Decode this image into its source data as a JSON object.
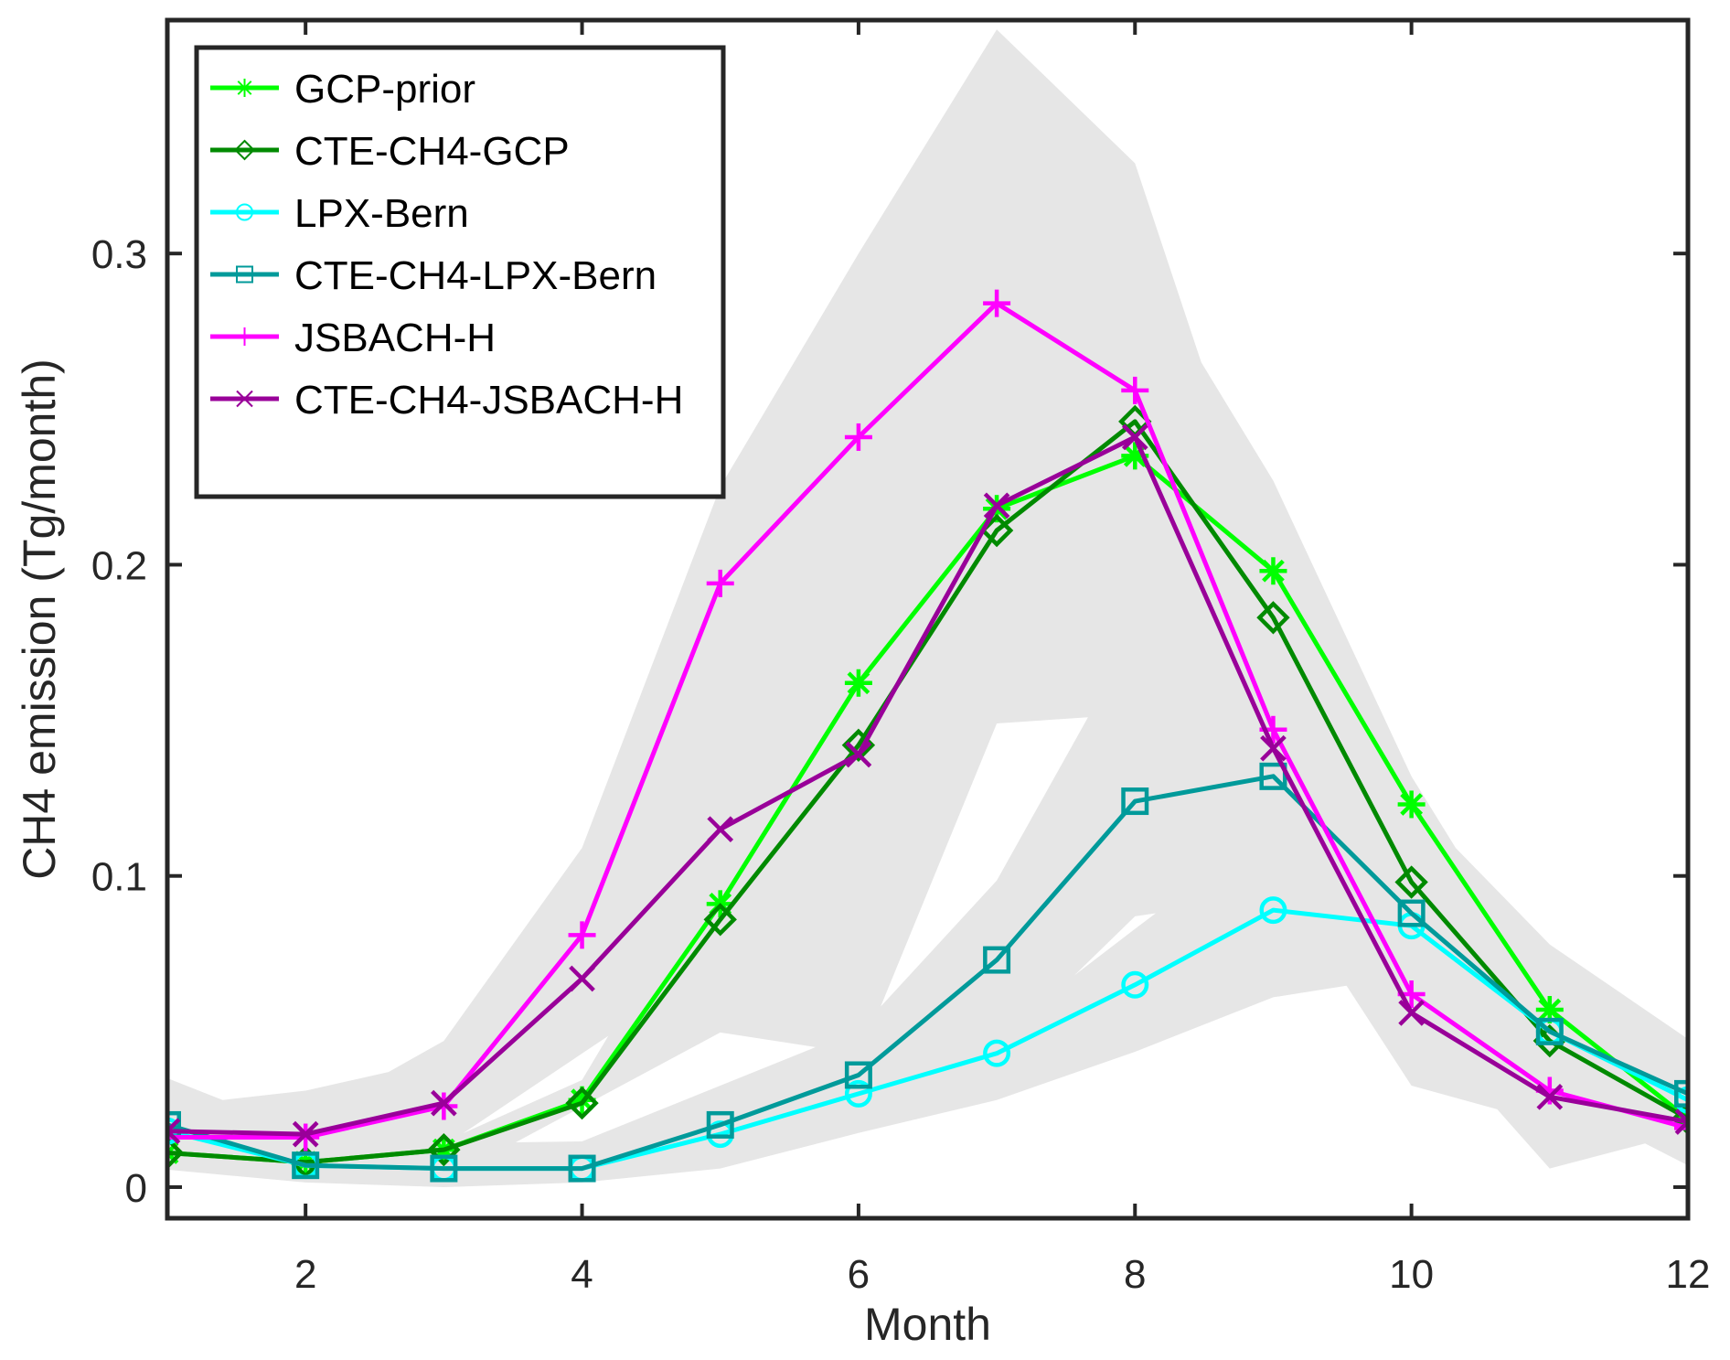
{
  "chart_data": {
    "type": "line",
    "title": "",
    "xlabel": "Month",
    "ylabel": "CH4 emission (Tg/month)",
    "xlim": [
      1,
      12
    ],
    "ylim": [
      -0.01,
      0.375
    ],
    "x_ticks": [
      2,
      4,
      6,
      8,
      10,
      12
    ],
    "x_tick_labels": [
      "2",
      "4",
      "6",
      "8",
      "10",
      "12"
    ],
    "y_ticks": [
      0,
      0.1,
      0.2,
      0.3
    ],
    "y_tick_labels": [
      "0",
      "0.1",
      "0.2",
      "0.3"
    ],
    "grid": false,
    "legend_position": "top-left",
    "x": [
      1,
      2,
      3,
      4,
      5,
      6,
      7,
      8,
      9,
      10,
      11,
      12
    ],
    "series": [
      {
        "name": "GCP-prior",
        "color": "#00ff00",
        "marker": "asterisk",
        "values": [
          0.011,
          0.008,
          0.012,
          0.028,
          0.091,
          0.162,
          0.218,
          0.235,
          0.198,
          0.123,
          0.057,
          0.022
        ]
      },
      {
        "name": "CTE-CH4-GCP",
        "color": "#008a00",
        "marker": "diamond",
        "values": [
          0.011,
          0.008,
          0.012,
          0.027,
          0.086,
          0.142,
          0.211,
          0.246,
          0.183,
          0.098,
          0.047,
          0.022
        ]
      },
      {
        "name": "LPX-Bern",
        "color": "#00ffff",
        "marker": "circle",
        "values": [
          0.018,
          0.007,
          0.006,
          0.006,
          0.017,
          0.03,
          0.043,
          0.065,
          0.089,
          0.084,
          0.05,
          0.028
        ]
      },
      {
        "name": "CTE-CH4-LPX-Bern",
        "color": "#009a9a",
        "marker": "square",
        "values": [
          0.02,
          0.007,
          0.006,
          0.006,
          0.02,
          0.036,
          0.073,
          0.124,
          0.132,
          0.088,
          0.05,
          0.03
        ]
      },
      {
        "name": "JSBACH-H",
        "color": "#ff00ff",
        "marker": "plus",
        "values": [
          0.016,
          0.016,
          0.026,
          0.081,
          0.194,
          0.241,
          0.284,
          0.256,
          0.147,
          0.062,
          0.031,
          0.019
        ]
      },
      {
        "name": "CTE-CH4-JSBACH-H",
        "color": "#990099",
        "marker": "x",
        "values": [
          0.018,
          0.017,
          0.027,
          0.067,
          0.115,
          0.139,
          0.219,
          0.241,
          0.141,
          0.056,
          0.029,
          0.021
        ]
      }
    ],
    "uncertainty_band": {
      "color": "#e6e6e6",
      "upper": [
        [
          1,
          0.035
        ],
        [
          1.4,
          0.028
        ],
        [
          2,
          0.031
        ],
        [
          2.6,
          0.037
        ],
        [
          3,
          0.047
        ],
        [
          4,
          0.109
        ],
        [
          5,
          0.225
        ],
        [
          6,
          0.3
        ],
        [
          7,
          0.372
        ],
        [
          8,
          0.329
        ],
        [
          8.48,
          0.265
        ],
        [
          9,
          0.227
        ],
        [
          10,
          0.132
        ],
        [
          10.32,
          0.109
        ],
        [
          11,
          0.078
        ],
        [
          12,
          0.0476
        ]
      ],
      "lower": [
        [
          1,
          0.0056
        ],
        [
          2,
          0.0015
        ],
        [
          3,
          0.0
        ],
        [
          4,
          0.0015
        ],
        [
          5,
          0.006
        ],
        [
          6,
          0.0174
        ],
        [
          7,
          0.028
        ],
        [
          8,
          0.0435
        ],
        [
          9,
          0.061
        ],
        [
          9.53,
          0.0647
        ],
        [
          10,
          0.0326
        ],
        [
          10.62,
          0.025
        ],
        [
          11,
          0.006
        ],
        [
          11.69,
          0.014
        ],
        [
          12,
          0.007
        ]
      ],
      "gaps": [
        [
          [
            3.14,
            0.0173
          ],
          [
            4.19,
            0.0486
          ],
          [
            4.0,
            0.0344
          ]
        ],
        [
          [
            3.52,
            0.0144
          ],
          [
            5.0,
            0.0497
          ],
          [
            5.69,
            0.045
          ],
          [
            4.0,
            0.0147
          ]
        ],
        [
          [
            6.16,
            0.058
          ],
          [
            7.0,
            0.149
          ],
          [
            7.66,
            0.151
          ],
          [
            7.0,
            0.0985
          ]
        ],
        [
          [
            7.56,
            0.068
          ],
          [
            8.0,
            0.087
          ],
          [
            8.15,
            0.088
          ],
          [
            8.0,
            0.083
          ]
        ]
      ]
    }
  }
}
